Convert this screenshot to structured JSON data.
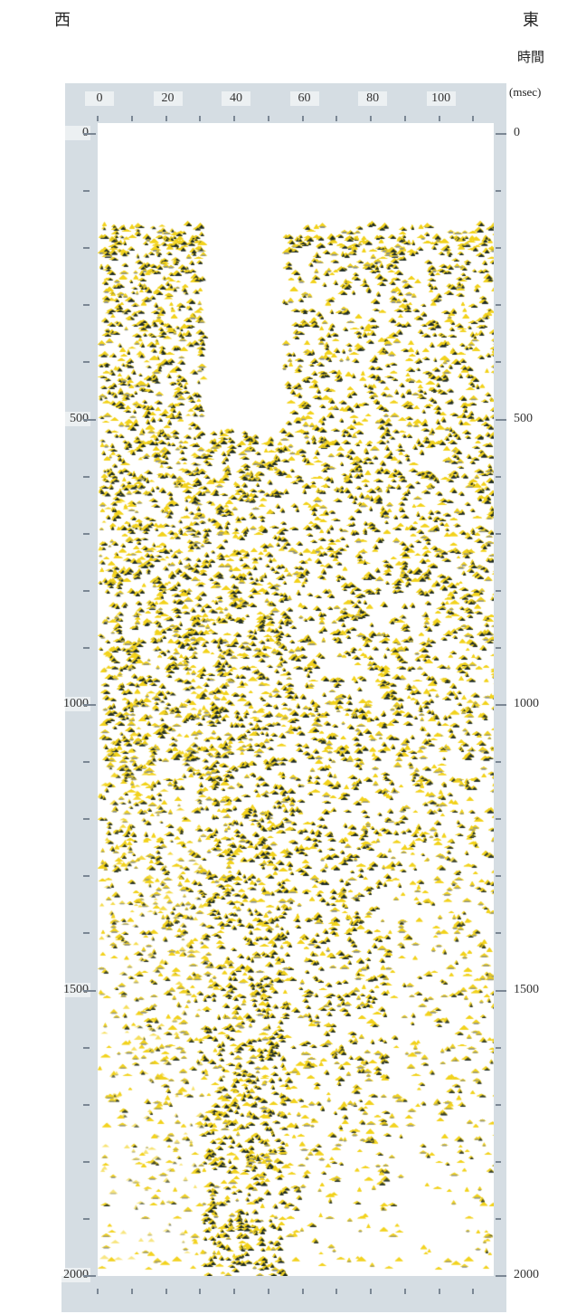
{
  "header": {
    "west_label": "西",
    "east_label": "東",
    "time_label": "時間",
    "time_unit": "(msec)"
  },
  "chart_data": {
    "type": "heatmap",
    "title": "",
    "xlabel": "",
    "ylabel": "時間 (msec)",
    "x_ticks": [
      "0",
      "20",
      "40",
      "60",
      "80",
      "100"
    ],
    "y_ticks_left": [
      "0",
      "500",
      "1000",
      "1500",
      "2000"
    ],
    "y_ticks_right": [
      "0",
      "500",
      "1000",
      "1500",
      "2000"
    ],
    "xlim": [
      0,
      116
    ],
    "ylim": [
      2000,
      0
    ],
    "grid": false,
    "colors": {
      "positive": "#f2d21c",
      "negative": "#1d2b28",
      "ruler": "#d5dde3"
    },
    "amplitude_zones": [
      {
        "x_range": [
          0,
          30
        ],
        "t_start": 160,
        "t_end": 2000,
        "strong_until": 900
      },
      {
        "x_range": [
          30,
          54
        ],
        "t_start": 520,
        "t_end": 2000,
        "strong_until": 2000
      },
      {
        "x_range": [
          54,
          84
        ],
        "t_start": 160,
        "t_end": 2000,
        "strong_until": 1500
      },
      {
        "x_range": [
          84,
          116
        ],
        "t_start": 160,
        "t_end": 2000,
        "strong_until": 780
      }
    ]
  }
}
